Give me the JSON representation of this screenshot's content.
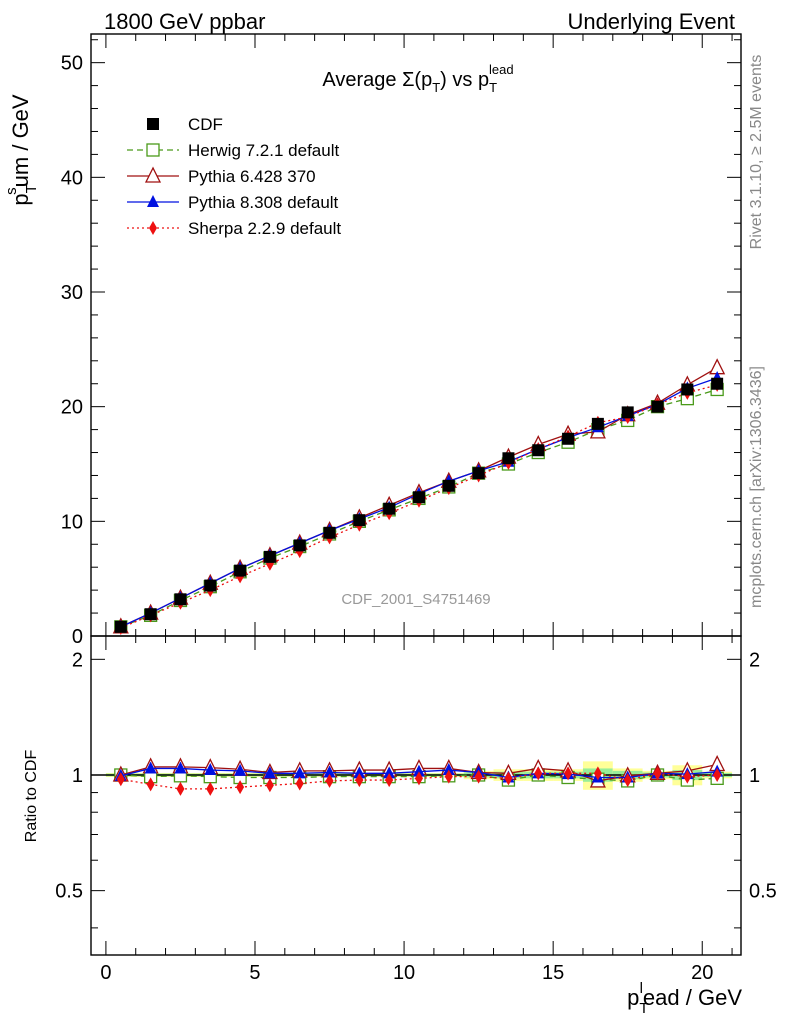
{
  "header": {
    "left": "1800 GeV ppbar",
    "right": "Underlying Event"
  },
  "side": {
    "rivet": "Rivet 3.1.10, ≥ 2.5M events",
    "mcplots": "mcplots.cern.ch [arXiv:1306.3436]"
  },
  "chart_data": [
    {
      "type": "scatter",
      "panel": "main",
      "title_main": "Average Σ(p",
      "title_sub": "T",
      "title_mid": ") vs p",
      "title_sub2": "T",
      "title_sup": "lead",
      "ylabel_main": "p",
      "ylabel_sub": "T",
      "ylabel_sup": "s",
      "ylabel_rest": "um / GeV",
      "watermark": "CDF_2001_S4751469",
      "xlim": [
        -0.5,
        21.3
      ],
      "ylim": [
        0,
        52.5
      ],
      "grid": false,
      "legend_position": "top-left",
      "x_ticks": [
        0,
        5,
        10,
        15,
        20
      ],
      "y_ticks": [
        0,
        10,
        20,
        30,
        40,
        50
      ],
      "x": [
        0.5,
        1.5,
        2.5,
        3.5,
        4.5,
        5.5,
        6.5,
        7.5,
        8.5,
        9.5,
        10.5,
        11.5,
        12.5,
        13.5,
        14.5,
        15.5,
        16.5,
        17.5,
        18.5,
        19.5,
        20.5
      ],
      "series": [
        {
          "name": "CDF",
          "color": "#000000",
          "marker": "square-filled",
          "line": "none",
          "values": [
            0.8,
            1.9,
            3.2,
            4.4,
            5.7,
            6.9,
            7.9,
            9.0,
            10.1,
            11.1,
            12.1,
            13.1,
            14.2,
            15.5,
            16.2,
            17.2,
            18.5,
            19.5,
            20.0,
            21.5,
            22.0
          ]
        },
        {
          "name": "Herwig 7.2.1 default",
          "color": "#4a9a1a",
          "marker": "square-open",
          "line": "dashed",
          "values": [
            0.8,
            1.8,
            3.1,
            4.3,
            5.6,
            6.8,
            7.8,
            8.9,
            10.0,
            11.0,
            12.0,
            13.0,
            14.2,
            15.0,
            16.0,
            16.9,
            18.0,
            18.8,
            20.0,
            20.7,
            21.5
          ]
        },
        {
          "name": "Pythia 6.428 370",
          "color": "#a01010",
          "marker": "triangle-open",
          "line": "solid",
          "values": [
            0.8,
            2.0,
            3.3,
            4.6,
            5.9,
            7.0,
            8.1,
            9.2,
            10.3,
            11.4,
            12.5,
            13.5,
            14.4,
            15.6,
            16.7,
            17.6,
            17.8,
            19.3,
            20.3,
            21.9,
            23.4
          ]
        },
        {
          "name": "Pythia 8.308 default",
          "color": "#0010e0",
          "marker": "triangle-filled",
          "line": "solid",
          "values": [
            0.8,
            2.0,
            3.3,
            4.6,
            5.9,
            7.0,
            8.1,
            9.2,
            10.2,
            11.2,
            12.4,
            13.5,
            14.4,
            15.2,
            16.3,
            17.3,
            18.2,
            19.2,
            20.2,
            21.6,
            22.5
          ]
        },
        {
          "name": "Sherpa 2.2.9 default",
          "color": "#ee1010",
          "marker": "diamond-filled",
          "line": "dotted",
          "values": [
            0.7,
            1.8,
            2.9,
            4.0,
            5.2,
            6.3,
            7.4,
            8.6,
            9.7,
            10.7,
            11.8,
            12.9,
            14.0,
            15.1,
            16.3,
            17.4,
            18.6,
            19.1,
            20.2,
            21.2,
            21.9
          ]
        }
      ]
    },
    {
      "type": "scatter",
      "panel": "ratio",
      "ylabel": "Ratio to CDF",
      "xlabel_main": "p",
      "xlabel_sub": "T",
      "xlabel_sup": "l",
      "xlabel_rest": "ead / GeV",
      "xlim": [
        -0.5,
        21.3
      ],
      "ylim": [
        0.34,
        2.3
      ],
      "scale": "log",
      "y_ticks": [
        0.5,
        1,
        2
      ],
      "x": [
        0.5,
        1.5,
        2.5,
        3.5,
        4.5,
        5.5,
        6.5,
        7.5,
        8.5,
        9.5,
        10.5,
        11.5,
        12.5,
        13.5,
        14.5,
        15.5,
        16.5,
        17.5,
        18.5,
        19.5,
        20.5
      ],
      "band_green_halfwidth": [
        0.008,
        0.008,
        0.008,
        0.008,
        0.008,
        0.008,
        0.008,
        0.008,
        0.008,
        0.008,
        0.008,
        0.008,
        0.015,
        0.02,
        0.02,
        0.02,
        0.04,
        0.025,
        0.015,
        0.03,
        0.012
      ],
      "band_yellow_halfwidth": [
        0.012,
        0.012,
        0.012,
        0.012,
        0.012,
        0.012,
        0.012,
        0.012,
        0.012,
        0.012,
        0.012,
        0.012,
        0.025,
        0.035,
        0.035,
        0.035,
        0.085,
        0.04,
        0.025,
        0.06,
        0.02
      ],
      "series": [
        {
          "name": "Herwig 7.2.1 default",
          "color": "#4a9a1a",
          "marker": "square-open",
          "line": "dashed",
          "values": [
            1.0,
            0.99,
            0.995,
            0.99,
            0.985,
            0.985,
            0.985,
            0.99,
            0.99,
            0.99,
            0.99,
            0.995,
            1.0,
            0.97,
            1.0,
            0.985,
            0.975,
            0.965,
            1.0,
            0.97,
            0.98
          ]
        },
        {
          "name": "Pythia 6.428 370",
          "color": "#a01010",
          "marker": "triangle-open",
          "line": "solid",
          "values": [
            1.0,
            1.05,
            1.05,
            1.045,
            1.035,
            1.015,
            1.025,
            1.025,
            1.03,
            1.03,
            1.04,
            1.04,
            1.015,
            1.01,
            1.04,
            1.025,
            0.965,
            0.995,
            1.01,
            1.025,
            1.065
          ]
        },
        {
          "name": "Pythia 8.308 default",
          "color": "#0010e0",
          "marker": "triangle-filled",
          "line": "solid",
          "values": [
            0.995,
            1.04,
            1.04,
            1.03,
            1.025,
            1.01,
            1.01,
            1.015,
            1.01,
            1.01,
            1.02,
            1.03,
            1.015,
            0.985,
            1.01,
            1.005,
            0.985,
            0.985,
            1.01,
            1.005,
            1.02
          ]
        },
        {
          "name": "Sherpa 2.2.9 default",
          "color": "#ee1010",
          "marker": "diamond-filled",
          "line": "dotted",
          "values": [
            0.975,
            0.945,
            0.92,
            0.92,
            0.93,
            0.94,
            0.95,
            0.965,
            0.97,
            0.97,
            0.98,
            0.99,
            0.99,
            0.98,
            1.01,
            1.01,
            1.01,
            0.97,
            1.01,
            0.99,
            1.0
          ]
        }
      ]
    }
  ]
}
